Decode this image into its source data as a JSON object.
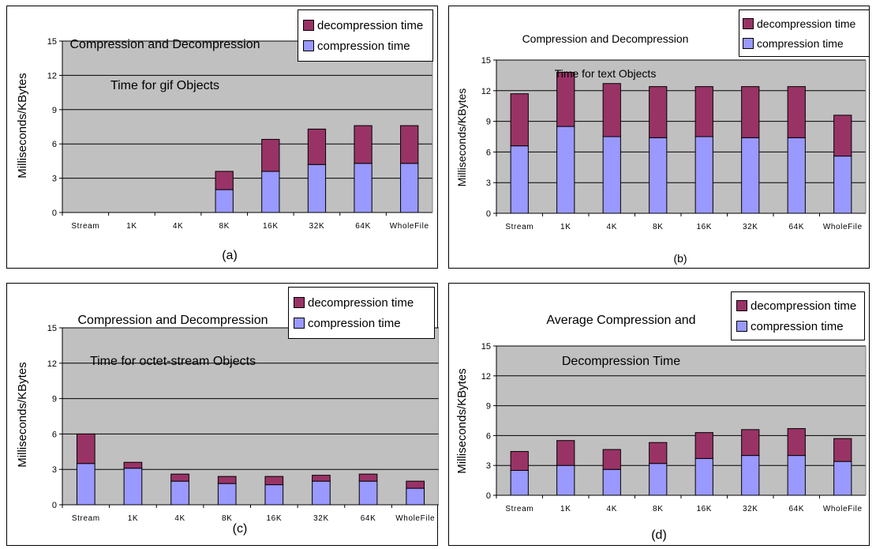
{
  "colors": {
    "decompression": "#993366",
    "compression": "#9999ff",
    "plot_background": "#c0c0c0",
    "gridline": "#000000"
  },
  "chart_data": [
    {
      "type": "bar",
      "stacked": true,
      "tag": "(a)",
      "title_lines": [
        "Compression and Decompression",
        "Time for gif Objects"
      ],
      "ylabel": "Milliseconds/KBytes",
      "xlabel": "",
      "categories": [
        "Stream",
        "1K",
        "4K",
        "8K",
        "16K",
        "32K",
        "64K",
        "WholeFile"
      ],
      "ylim": [
        0,
        15
      ],
      "yticks": [
        0,
        3,
        6,
        9,
        12,
        15
      ],
      "grid": true,
      "legend_position": "top-right",
      "series": [
        {
          "name": "compression time",
          "values": [
            0,
            0,
            0,
            2.0,
            3.6,
            4.2,
            4.3,
            4.3
          ]
        },
        {
          "name": "decompression time",
          "values": [
            0,
            0,
            0,
            1.6,
            2.8,
            3.1,
            3.3,
            3.3
          ]
        }
      ]
    },
    {
      "type": "bar",
      "stacked": true,
      "tag": "(b)",
      "title_lines": [
        "Compression and Decompression",
        "Time for text Objects"
      ],
      "ylabel": "Milliseconds/KBytes",
      "xlabel": "",
      "categories": [
        "Stream",
        "1K",
        "4K",
        "8K",
        "16K",
        "32K",
        "64K",
        "WholeFile"
      ],
      "ylim": [
        0,
        15
      ],
      "yticks": [
        0,
        3,
        6,
        9,
        12,
        15
      ],
      "grid": true,
      "legend_position": "top-right",
      "series": [
        {
          "name": "compression time",
          "values": [
            6.6,
            8.5,
            7.5,
            7.4,
            7.5,
            7.4,
            7.4,
            5.6
          ]
        },
        {
          "name": "decompression time",
          "values": [
            5.1,
            5.3,
            5.2,
            5.0,
            4.9,
            5.0,
            5.0,
            4.0
          ]
        }
      ]
    },
    {
      "type": "bar",
      "stacked": true,
      "tag": "(c)",
      "title_lines": [
        "Compression and Decompression",
        "Time for octet-stream Objects"
      ],
      "ylabel": "Milliseconds/KBytes",
      "xlabel": "",
      "categories": [
        "Stream",
        "1K",
        "4K",
        "8K",
        "16K",
        "32K",
        "64K",
        "WholeFile"
      ],
      "ylim": [
        0,
        15
      ],
      "yticks": [
        0,
        3,
        6,
        9,
        12,
        15
      ],
      "grid": true,
      "legend_position": "top-right",
      "series": [
        {
          "name": "compression time",
          "values": [
            3.5,
            3.1,
            2.0,
            1.8,
            1.7,
            2.0,
            2.0,
            1.4
          ]
        },
        {
          "name": "decompression time",
          "values": [
            2.5,
            0.5,
            0.6,
            0.6,
            0.7,
            0.5,
            0.6,
            0.6
          ]
        }
      ]
    },
    {
      "type": "bar",
      "stacked": true,
      "tag": "(d)",
      "title_lines": [
        "Average Compression and",
        "Decompression Time"
      ],
      "ylabel": "Milliseconds/KBytes",
      "xlabel": "",
      "categories": [
        "Stream",
        "1K",
        "4K",
        "8K",
        "16K",
        "32K",
        "64K",
        "WholeFile"
      ],
      "ylim": [
        0,
        15
      ],
      "yticks": [
        0,
        3,
        6,
        9,
        12,
        15
      ],
      "grid": true,
      "legend_position": "top-right",
      "series": [
        {
          "name": "compression time",
          "values": [
            2.5,
            3.0,
            2.6,
            3.2,
            3.7,
            4.0,
            4.0,
            3.4
          ]
        },
        {
          "name": "decompression time",
          "values": [
            1.9,
            2.5,
            2.0,
            2.1,
            2.6,
            2.6,
            2.7,
            2.3
          ]
        }
      ]
    }
  ]
}
